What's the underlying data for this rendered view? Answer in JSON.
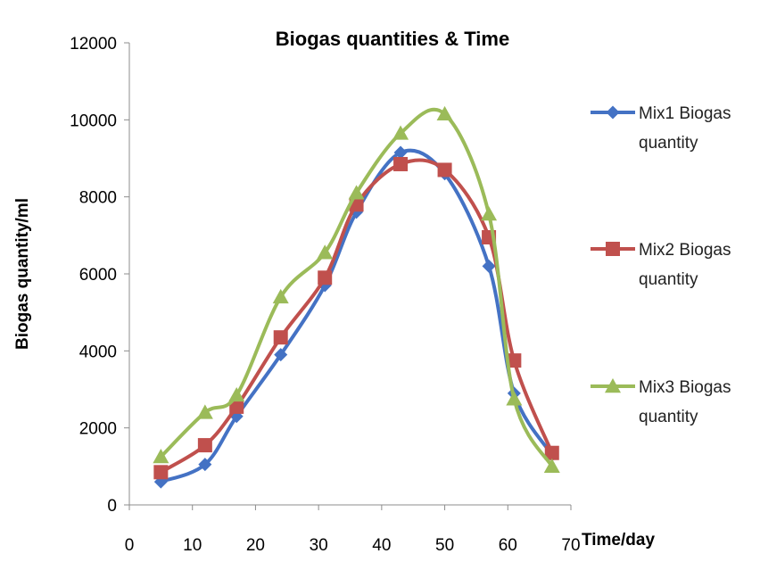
{
  "chart_data": {
    "type": "line",
    "title": "Biogas quantities & Time",
    "xlabel": "Time/day",
    "ylabel": "Biogas quantity/ml",
    "xlim": [
      0,
      70
    ],
    "ylim": [
      0,
      12000
    ],
    "xticks": [
      0,
      10,
      20,
      30,
      40,
      50,
      60,
      70
    ],
    "yticks": [
      0,
      2000,
      4000,
      6000,
      8000,
      10000,
      12000
    ],
    "grid": false,
    "smooth": true,
    "legend_position": "right",
    "series": [
      {
        "name": "Mix1 Biogas quantity",
        "legend_lines": [
          "Mix1 Biogas",
          "quantity"
        ],
        "color": "#4472C4",
        "marker": "diamond",
        "x": [
          5,
          12,
          17,
          24,
          31,
          36,
          43,
          50,
          57,
          61,
          67
        ],
        "y": [
          600,
          1050,
          2300,
          3900,
          5700,
          7600,
          9150,
          8600,
          6200,
          2900,
          1300
        ]
      },
      {
        "name": "Mix2 Biogas quantity",
        "legend_lines": [
          "Mix2 Biogas",
          "quantity"
        ],
        "color": "#C0504D",
        "marker": "square",
        "x": [
          5,
          12,
          17,
          24,
          31,
          36,
          43,
          50,
          57,
          61,
          67
        ],
        "y": [
          850,
          1550,
          2550,
          4350,
          5900,
          7800,
          8850,
          8700,
          6950,
          3750,
          1350
        ]
      },
      {
        "name": "Mix3 Biogas quantity",
        "legend_lines": [
          "Mix3 Biogas",
          "quantity"
        ],
        "color": "#9BBB59",
        "marker": "triangle",
        "x": [
          5,
          12,
          17,
          24,
          31,
          36,
          43,
          50,
          57,
          61,
          67
        ],
        "y": [
          1250,
          2400,
          2850,
          5400,
          6550,
          8100,
          9650,
          10150,
          7550,
          2750,
          1000
        ]
      }
    ]
  }
}
